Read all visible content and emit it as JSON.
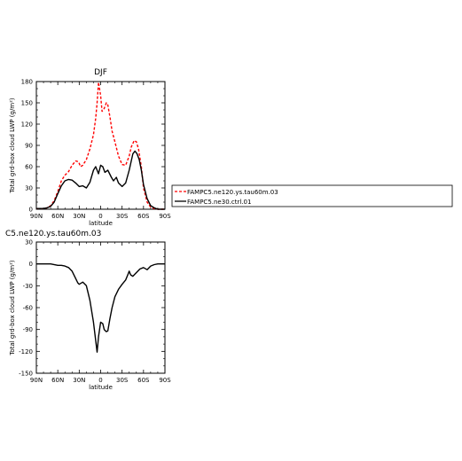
{
  "chart_data": [
    {
      "type": "line",
      "title": "DJF",
      "xlabel": "latitude",
      "ylabel": "Total grd-box cloud LWP (g/m²)",
      "xlim": [
        -90,
        90
      ],
      "ylim": [
        0,
        180
      ],
      "xticks": [
        {
          "v": -90,
          "label": "90N"
        },
        {
          "v": -60,
          "label": "60N"
        },
        {
          "v": -30,
          "label": "30N"
        },
        {
          "v": 0,
          "label": "0"
        },
        {
          "v": 30,
          "label": "30S"
        },
        {
          "v": 60,
          "label": "60S"
        },
        {
          "v": 90,
          "label": "90S"
        }
      ],
      "yticks": [
        0,
        30,
        60,
        90,
        120,
        150,
        180
      ],
      "grid": false,
      "legend_position": "right",
      "series": [
        {
          "name": "FAMPC5.ne120.ys.tau60m.03",
          "color": "#ff0000",
          "dash": true,
          "x": [
            -90,
            -85,
            -80,
            -75,
            -70,
            -65,
            -60,
            -55,
            -50,
            -45,
            -40,
            -35,
            -31,
            -28,
            -25,
            -20,
            -15,
            -10,
            -7,
            -5,
            -3,
            0,
            2,
            5,
            8,
            10,
            13,
            16,
            20,
            25,
            30,
            35,
            40,
            43,
            47,
            50,
            53,
            57,
            60,
            65,
            70,
            75,
            80,
            85,
            90
          ],
          "y": [
            1,
            1,
            1,
            2,
            5,
            12,
            25,
            40,
            48,
            53,
            62,
            68,
            67,
            60,
            62,
            70,
            85,
            105,
            128,
            150,
            179,
            160,
            138,
            142,
            150,
            147,
            130,
            110,
            95,
            75,
            63,
            62,
            75,
            88,
            97,
            95,
            85,
            60,
            30,
            10,
            3,
            1,
            0,
            0,
            0
          ]
        },
        {
          "name": "FAMPC5.ne30.ctrl.01",
          "color": "#000000",
          "dash": false,
          "x": [
            -90,
            -85,
            -80,
            -75,
            -70,
            -65,
            -60,
            -55,
            -50,
            -45,
            -40,
            -35,
            -30,
            -25,
            -20,
            -15,
            -10,
            -7,
            -5,
            -3,
            0,
            3,
            6,
            10,
            15,
            18,
            22,
            25,
            30,
            35,
            40,
            45,
            48,
            51,
            54,
            57,
            60,
            65,
            70,
            75,
            80,
            85,
            90
          ],
          "y": [
            1,
            1,
            1,
            2,
            4,
            10,
            22,
            33,
            40,
            42,
            41,
            37,
            32,
            33,
            30,
            38,
            55,
            60,
            55,
            50,
            62,
            60,
            52,
            55,
            45,
            40,
            45,
            37,
            32,
            37,
            55,
            78,
            82,
            78,
            70,
            55,
            35,
            15,
            5,
            2,
            0,
            0,
            0
          ]
        }
      ]
    },
    {
      "type": "line",
      "title": "C5.ne120.ys.tau60m.03",
      "xlabel": "latitude",
      "ylabel": "Total grd-box cloud LWP (g/m²)",
      "xlim": [
        -90,
        90
      ],
      "ylim": [
        -150,
        30
      ],
      "xticks": [
        {
          "v": -90,
          "label": "90N"
        },
        {
          "v": -60,
          "label": "60N"
        },
        {
          "v": -30,
          "label": "30N"
        },
        {
          "v": 0,
          "label": "0"
        },
        {
          "v": 30,
          "label": "30S"
        },
        {
          "v": 60,
          "label": "60S"
        },
        {
          "v": 90,
          "label": "90S"
        }
      ],
      "yticks": [
        -150,
        -120,
        -90,
        -60,
        -30,
        0,
        30
      ],
      "grid": false,
      "series": [
        {
          "color": "#000000",
          "dash": false,
          "x": [
            -90,
            -80,
            -70,
            -60,
            -55,
            -50,
            -45,
            -40,
            -35,
            -32,
            -30,
            -25,
            -20,
            -15,
            -10,
            -7,
            -5,
            -3,
            0,
            3,
            5,
            8,
            10,
            13,
            16,
            20,
            25,
            30,
            35,
            38,
            40,
            42,
            45,
            50,
            55,
            60,
            65,
            70,
            75,
            80,
            85,
            90
          ],
          "y": [
            0,
            0,
            0,
            -2,
            -2,
            -3,
            -5,
            -10,
            -20,
            -26,
            -28,
            -25,
            -30,
            -50,
            -80,
            -105,
            -121,
            -100,
            -80,
            -82,
            -90,
            -93,
            -92,
            -75,
            -60,
            -45,
            -35,
            -28,
            -22,
            -15,
            -10,
            -15,
            -17,
            -12,
            -7,
            -5,
            -8,
            -3,
            -1,
            0,
            0,
            0
          ]
        }
      ]
    }
  ]
}
